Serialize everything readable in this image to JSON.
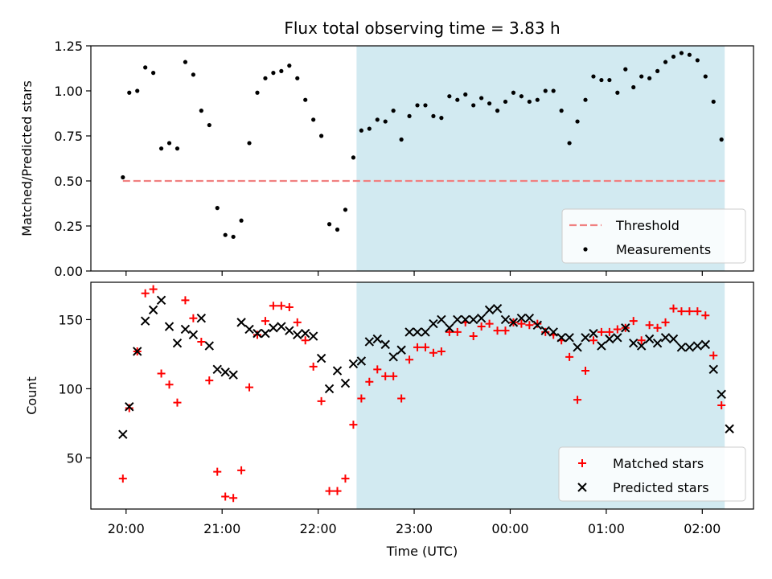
{
  "title": "Flux total observing time = 3.83 h",
  "xlabel": "Time (UTC)",
  "x_ticks": [
    "20:00",
    "21:00",
    "22:00",
    "23:00",
    "00:00",
    "01:00",
    "02:00"
  ],
  "colors": {
    "threshold": "#f08080",
    "measurements": "#000000",
    "matched": "#ff0000",
    "predicted": "#000000",
    "shade": "#add8e6"
  },
  "chart_data": [
    {
      "type": "scatter",
      "ylabel": "Matched/Predicted stars",
      "ylim": [
        0,
        1.25
      ],
      "y_ticks": [
        "0.00",
        "0.25",
        "0.50",
        "0.75",
        "1.00",
        "1.25"
      ],
      "xlim": [
        "19:38",
        "02:32"
      ],
      "shaded_interval": [
        "22:24",
        "02:14"
      ],
      "threshold": {
        "name": "Threshold",
        "value": 0.5,
        "x_range": [
          "19:58",
          "02:14"
        ]
      },
      "legend": [
        "Threshold",
        "Measurements"
      ],
      "legend_position": "lower-right",
      "series": [
        {
          "name": "Measurements",
          "x": [
            "19:58",
            "20:02",
            "20:07",
            "20:12",
            "20:17",
            "20:22",
            "20:27",
            "20:32",
            "20:37",
            "20:42",
            "20:47",
            "20:52",
            "20:57",
            "21:02",
            "21:07",
            "21:12",
            "21:17",
            "21:22",
            "21:27",
            "21:32",
            "21:37",
            "21:42",
            "21:47",
            "21:52",
            "21:57",
            "22:02",
            "22:07",
            "22:12",
            "22:17",
            "22:22",
            "22:27",
            "22:32",
            "22:37",
            "22:42",
            "22:47",
            "22:52",
            "22:57",
            "23:02",
            "23:07",
            "23:12",
            "23:17",
            "23:22",
            "23:27",
            "23:32",
            "23:37",
            "23:42",
            "23:47",
            "23:52",
            "23:57",
            "00:02",
            "00:07",
            "00:12",
            "00:17",
            "00:22",
            "00:27",
            "00:32",
            "00:37",
            "00:42",
            "00:47",
            "00:52",
            "00:57",
            "01:02",
            "01:07",
            "01:12",
            "01:17",
            "01:22",
            "01:27",
            "01:32",
            "01:37",
            "01:42",
            "01:47",
            "01:52",
            "01:57",
            "02:02",
            "02:07",
            "02:12"
          ],
          "y": [
            0.52,
            0.99,
            1.0,
            1.13,
            1.1,
            0.68,
            0.71,
            0.68,
            1.16,
            1.09,
            0.89,
            0.81,
            0.35,
            0.2,
            0.19,
            0.28,
            0.71,
            0.99,
            1.07,
            1.1,
            1.11,
            1.14,
            1.07,
            0.95,
            0.84,
            0.75,
            0.26,
            0.23,
            0.34,
            0.63,
            0.78,
            0.79,
            0.84,
            0.83,
            0.89,
            0.73,
            0.86,
            0.92,
            0.92,
            0.86,
            0.85,
            0.97,
            0.95,
            0.98,
            0.92,
            0.96,
            0.93,
            0.89,
            0.94,
            0.99,
            0.97,
            0.94,
            0.95,
            1.0,
            1.0,
            0.89,
            0.71,
            0.83,
            0.95,
            1.08,
            1.06,
            1.06,
            0.99,
            1.12,
            1.02,
            1.08,
            1.07,
            1.11,
            1.16,
            1.19,
            1.21,
            1.2,
            1.17,
            1.08,
            0.94,
            0.73
          ]
        }
      ]
    },
    {
      "type": "scatter",
      "ylabel": "Count",
      "ylim": [
        13,
        177
      ],
      "y_ticks": [
        "50",
        "100",
        "150"
      ],
      "xlim": [
        "19:38",
        "02:32"
      ],
      "shaded_interval": [
        "22:24",
        "02:14"
      ],
      "legend": [
        "Matched stars",
        "Predicted stars"
      ],
      "legend_position": "lower-right",
      "series": [
        {
          "name": "Matched stars",
          "x": [
            "19:58",
            "20:02",
            "20:07",
            "20:12",
            "20:17",
            "20:22",
            "20:27",
            "20:32",
            "20:37",
            "20:42",
            "20:47",
            "20:52",
            "20:57",
            "21:02",
            "21:07",
            "21:12",
            "21:17",
            "21:22",
            "21:27",
            "21:32",
            "21:37",
            "21:42",
            "21:47",
            "21:52",
            "21:57",
            "22:02",
            "22:07",
            "22:12",
            "22:17",
            "22:22",
            "22:27",
            "22:32",
            "22:37",
            "22:42",
            "22:47",
            "22:52",
            "22:57",
            "23:02",
            "23:07",
            "23:12",
            "23:17",
            "23:22",
            "23:27",
            "23:32",
            "23:37",
            "23:42",
            "23:47",
            "23:52",
            "23:57",
            "00:02",
            "00:07",
            "00:12",
            "00:17",
            "00:22",
            "00:27",
            "00:32",
            "00:37",
            "00:42",
            "00:47",
            "00:52",
            "00:57",
            "01:02",
            "01:07",
            "01:12",
            "01:17",
            "01:22",
            "01:27",
            "01:32",
            "01:37",
            "01:42",
            "01:47",
            "01:52",
            "01:57",
            "02:02",
            "02:07",
            "02:12"
          ],
          "y": [
            35,
            86,
            127,
            169,
            172,
            111,
            103,
            90,
            164,
            151,
            134,
            106,
            40,
            22,
            21,
            41,
            101,
            139,
            149,
            160,
            160,
            159,
            148,
            135,
            116,
            91,
            26,
            26,
            35,
            74,
            93,
            105,
            114,
            109,
            109,
            93,
            121,
            130,
            130,
            126,
            127,
            141,
            141,
            148,
            138,
            145,
            147,
            142,
            142,
            148,
            147,
            146,
            147,
            141,
            139,
            135,
            123,
            92,
            113,
            135,
            141,
            141,
            143,
            144,
            149,
            135,
            146,
            144,
            148,
            158,
            156,
            156,
            156,
            153,
            124,
            88
          ]
        },
        {
          "name": "Predicted stars",
          "x": [
            "19:58",
            "20:02",
            "20:07",
            "20:12",
            "20:17",
            "20:22",
            "20:27",
            "20:32",
            "20:37",
            "20:42",
            "20:47",
            "20:52",
            "20:57",
            "21:02",
            "21:07",
            "21:12",
            "21:17",
            "21:22",
            "21:27",
            "21:32",
            "21:37",
            "21:42",
            "21:47",
            "21:52",
            "21:57",
            "22:02",
            "22:07",
            "22:12",
            "22:17",
            "22:22",
            "22:27",
            "22:32",
            "22:37",
            "22:42",
            "22:47",
            "22:52",
            "22:57",
            "23:02",
            "23:07",
            "23:12",
            "23:17",
            "23:22",
            "23:27",
            "23:32",
            "23:37",
            "23:42",
            "23:47",
            "23:52",
            "23:57",
            "00:02",
            "00:07",
            "00:12",
            "00:17",
            "00:22",
            "00:27",
            "00:32",
            "00:37",
            "00:42",
            "00:47",
            "00:52",
            "00:57",
            "01:02",
            "01:07",
            "01:12",
            "01:17",
            "01:22",
            "01:27",
            "01:32",
            "01:37",
            "01:42",
            "01:47",
            "01:52",
            "01:57",
            "02:02",
            "02:07",
            "02:12",
            "02:17"
          ],
          "y": [
            67,
            87,
            127,
            149,
            157,
            164,
            145,
            133,
            143,
            139,
            151,
            131,
            114,
            112,
            110,
            148,
            143,
            140,
            140,
            144,
            145,
            142,
            139,
            140,
            138,
            122,
            100,
            113,
            104,
            118,
            120,
            134,
            136,
            132,
            123,
            128,
            141,
            141,
            141,
            147,
            150,
            144,
            150,
            150,
            150,
            151,
            157,
            158,
            150,
            148,
            151,
            151,
            146,
            142,
            141,
            137,
            137,
            130,
            137,
            140,
            131,
            136,
            137,
            144,
            133,
            131,
            136,
            133,
            137,
            136,
            130,
            130,
            131,
            132,
            114,
            96,
            71
          ]
        }
      ]
    }
  ]
}
